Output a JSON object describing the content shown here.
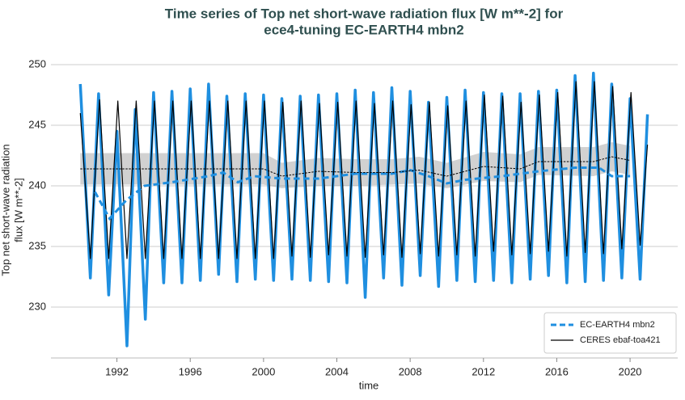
{
  "chart_data": {
    "type": "line",
    "title": "Time series of Top net short-wave radiation flux [W m**-2] for",
    "subtitle": "ece4-tuning EC-EARTH4 mbn2",
    "x_label": "time",
    "y_label": "Top net short-wave radiation",
    "y_label_units": "flux [W m**-2]",
    "xlim": [
      1988.4,
      2022.6
    ],
    "xticks": [
      1992,
      1996,
      2000,
      2004,
      2008,
      2012,
      2016,
      2020
    ],
    "ylim": [
      225.8,
      251.2
    ],
    "yticks": [
      230,
      235,
      240,
      245,
      250
    ],
    "grid": true,
    "legend": "lower right",
    "series": [
      {
        "name": "EC-EARTH4 mbn2",
        "color": "#1f8fe0",
        "width": 3.5,
        "x": [
          1990,
          1990.55,
          1991,
          1991.55,
          1992,
          1992.55,
          1993,
          1993.55,
          1994,
          1994.55,
          1995,
          1995.55,
          1996,
          1996.55,
          1997,
          1997.55,
          1998,
          1998.55,
          1999,
          1999.55,
          2000,
          2000.55,
          2001,
          2001.55,
          2002,
          2002.55,
          2003,
          2003.55,
          2004,
          2004.55,
          2005,
          2005.55,
          2006,
          2006.55,
          2007,
          2007.55,
          2008,
          2008.55,
          2009,
          2009.55,
          2010,
          2010.55,
          2011,
          2011.55,
          2012,
          2012.55,
          2013,
          2013.55,
          2014,
          2014.55,
          2015,
          2015.55,
          2016,
          2016.55,
          2017,
          2017.55,
          2018,
          2018.55,
          2019,
          2019.55,
          2020,
          2020.55,
          2020.95
        ],
        "values": [
          248.4,
          232.4,
          247.6,
          231,
          244.5,
          226.8,
          246.3,
          229,
          247.7,
          232,
          247.8,
          232,
          248,
          232.2,
          248.4,
          232.7,
          247.4,
          232.1,
          247.6,
          232.3,
          247.5,
          232.2,
          247.2,
          232.3,
          247.4,
          232.2,
          247.5,
          232.1,
          247.6,
          232,
          247.9,
          230.8,
          247.7,
          232.4,
          248.1,
          231.8,
          247.8,
          232.6,
          246.9,
          231.7,
          247.3,
          232.2,
          247.9,
          232.1,
          247.7,
          232.2,
          247.6,
          232,
          247.6,
          232.3,
          247.8,
          232.6,
          247.9,
          232,
          249.1,
          232.1,
          249.3,
          232.2,
          248.4,
          232.4,
          247.2,
          232.3,
          245.9
        ]
      },
      {
        "name": "CERES ebaf-toa421",
        "color": "#000000",
        "width": 1.2,
        "x": [
          1990,
          1990.55,
          1991.05,
          1991.55,
          1992.05,
          1992.55,
          1993.05,
          1993.55,
          1994.05,
          1994.55,
          1995.05,
          1995.55,
          1996.05,
          1996.55,
          1997.05,
          1997.55,
          1998.05,
          1998.55,
          1999.05,
          1999.55,
          2000.05,
          2000.55,
          2001.05,
          2001.55,
          2002.05,
          2002.55,
          2003.05,
          2003.55,
          2004.05,
          2004.55,
          2005.05,
          2005.55,
          2006.05,
          2006.55,
          2007.05,
          2007.55,
          2008.05,
          2008.55,
          2009.05,
          2009.55,
          2010.05,
          2010.55,
          2011.05,
          2011.55,
          2012.05,
          2012.55,
          2013.05,
          2013.55,
          2014.05,
          2014.55,
          2015.05,
          2015.55,
          2016.05,
          2016.55,
          2017.05,
          2017.55,
          2018.05,
          2018.55,
          2019.05,
          2019.55,
          2020.05,
          2020.55,
          2020.95
        ],
        "values": [
          246,
          234,
          247.1,
          234,
          247,
          234,
          247,
          234,
          247,
          234,
          247,
          234,
          247,
          234,
          247,
          234,
          247,
          234,
          247,
          234,
          247,
          234,
          246.9,
          234.2,
          247,
          234.1,
          246.8,
          234.3,
          246.9,
          234.2,
          247,
          234.1,
          246.8,
          234.3,
          247,
          234.1,
          246.7,
          234.4,
          246.9,
          234.2,
          246.6,
          234.3,
          247,
          234.2,
          247.5,
          234.6,
          247.4,
          234.3,
          246.9,
          234.4,
          247.5,
          234.6,
          247.7,
          234.2,
          248.6,
          234.5,
          248.6,
          234.4,
          248.2,
          234.8,
          247.7,
          235.1,
          243.4
        ]
      }
    ],
    "mean_lines": [
      {
        "of": 0,
        "dash": true,
        "width": 3,
        "x": [
          1990.8,
          1991.6,
          1992.5,
          1993.5,
          1995,
          1997,
          1997.8,
          1998.6,
          1999.5,
          2001,
          2003,
          2005,
          2007,
          2008,
          2009,
          2010,
          2011,
          2013,
          2015,
          2017,
          2018.3,
          2019,
          2020
        ],
        "values": [
          239.5,
          237.3,
          238.8,
          240,
          240.3,
          240.8,
          241.1,
          240.3,
          240.8,
          240.6,
          240.6,
          241,
          241,
          241.3,
          240.8,
          240.2,
          240.5,
          240.8,
          241.2,
          241.5,
          241.5,
          240.8,
          240.8
        ]
      },
      {
        "of": 1,
        "dash": true,
        "width": 1,
        "x": [
          1990,
          1995,
          2000,
          2001,
          2003,
          2005,
          2007,
          2008.5,
          2010,
          2012,
          2014,
          2015,
          2018,
          2019,
          2020
        ],
        "values": [
          241.4,
          241.4,
          241.4,
          240.8,
          241.2,
          241.1,
          241.1,
          241.3,
          240.8,
          241.6,
          241.4,
          242,
          242,
          242.4,
          242.1
        ],
        "lower": [
          240.1,
          240.1,
          240.1,
          239.8,
          240,
          240,
          240.1,
          240.2,
          239.8,
          240.4,
          240.3,
          240.9,
          240.8,
          241.2,
          240.9
        ],
        "upper": [
          242.7,
          242.7,
          242.7,
          241.9,
          242.3,
          242.2,
          242.2,
          242.4,
          241.9,
          242.8,
          242.6,
          243.2,
          243.2,
          243.6,
          243.3
        ]
      }
    ]
  }
}
